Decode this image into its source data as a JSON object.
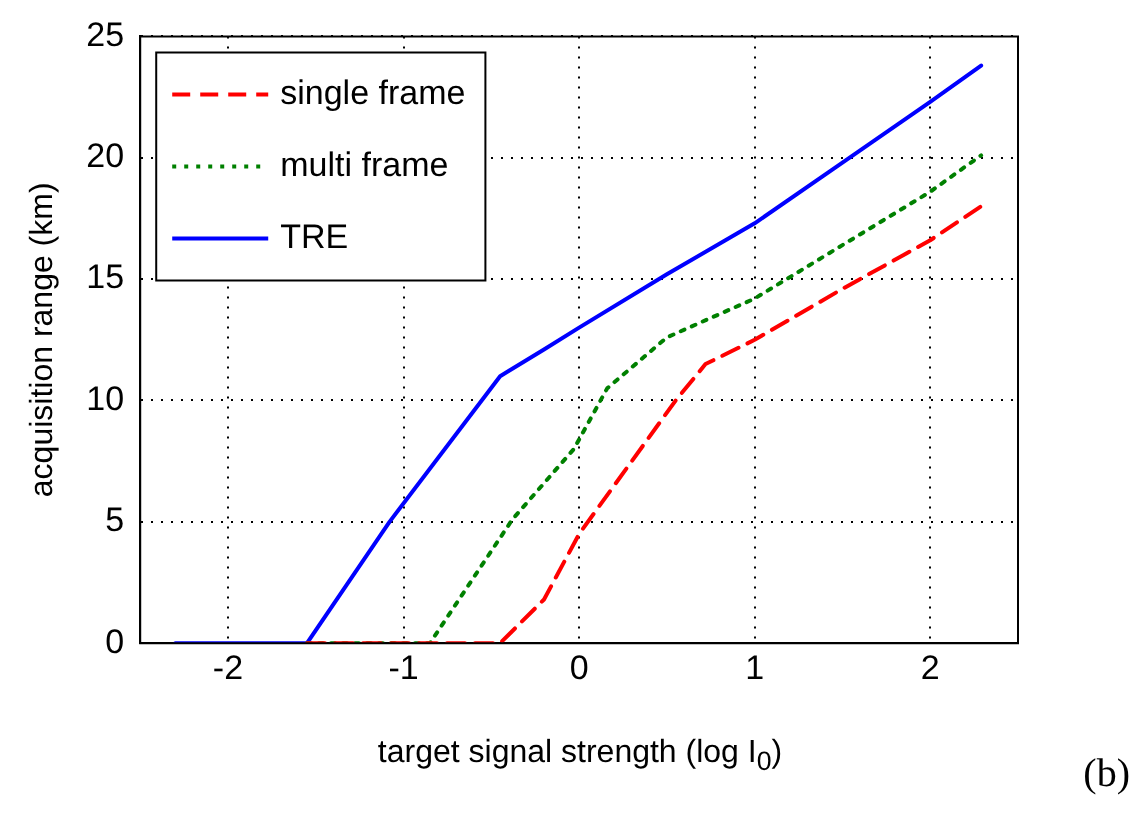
{
  "chart_data": {
    "type": "line",
    "xlabel": "target signal strength (log I$_{0}$)",
    "ylabel": "acquisition range (km)",
    "xlim": [
      -2.5,
      2.5
    ],
    "xticks": [
      -2,
      -1,
      0,
      1,
      2
    ],
    "ylim": [
      0,
      25
    ],
    "yticks": [
      0,
      5,
      10,
      15,
      20,
      25
    ],
    "grid": true,
    "legend": "top left",
    "marker": "none",
    "annotations": [
      "(b)"
    ],
    "series": [
      {
        "name": "single frame",
        "color": "#ff0000",
        "line_style": "dashed",
        "x": [
          -1.55,
          -0.45,
          -0.2,
          0,
          0.3,
          0.55,
          0.72,
          1,
          1.5,
          2,
          2.29
        ],
        "values": [
          0,
          0,
          1.8,
          4.5,
          7.5,
          10,
          11.5,
          12.5,
          14.6,
          16.6,
          18
        ]
      },
      {
        "name": "multi frame",
        "color": "#008000",
        "line_style": "dotted",
        "x": [
          -1.55,
          -0.85,
          -0.38,
          -0.03,
          0.16,
          0.5,
          1,
          1.5,
          2,
          2.29
        ],
        "values": [
          0,
          0,
          5.1,
          8,
          10.5,
          12.6,
          14.2,
          16.4,
          18.6,
          20.1
        ]
      },
      {
        "name": "TRE",
        "color": "#0000ff",
        "line_style": "solid",
        "x": [
          -2.3,
          -1.55,
          -1.08,
          -0.45,
          -0.2,
          0,
          0.5,
          1,
          1.5,
          2,
          2.29
        ],
        "values": [
          0,
          0,
          5,
          11,
          12.1,
          13,
          15.2,
          17.3,
          19.8,
          22.3,
          23.8
        ]
      }
    ]
  }
}
